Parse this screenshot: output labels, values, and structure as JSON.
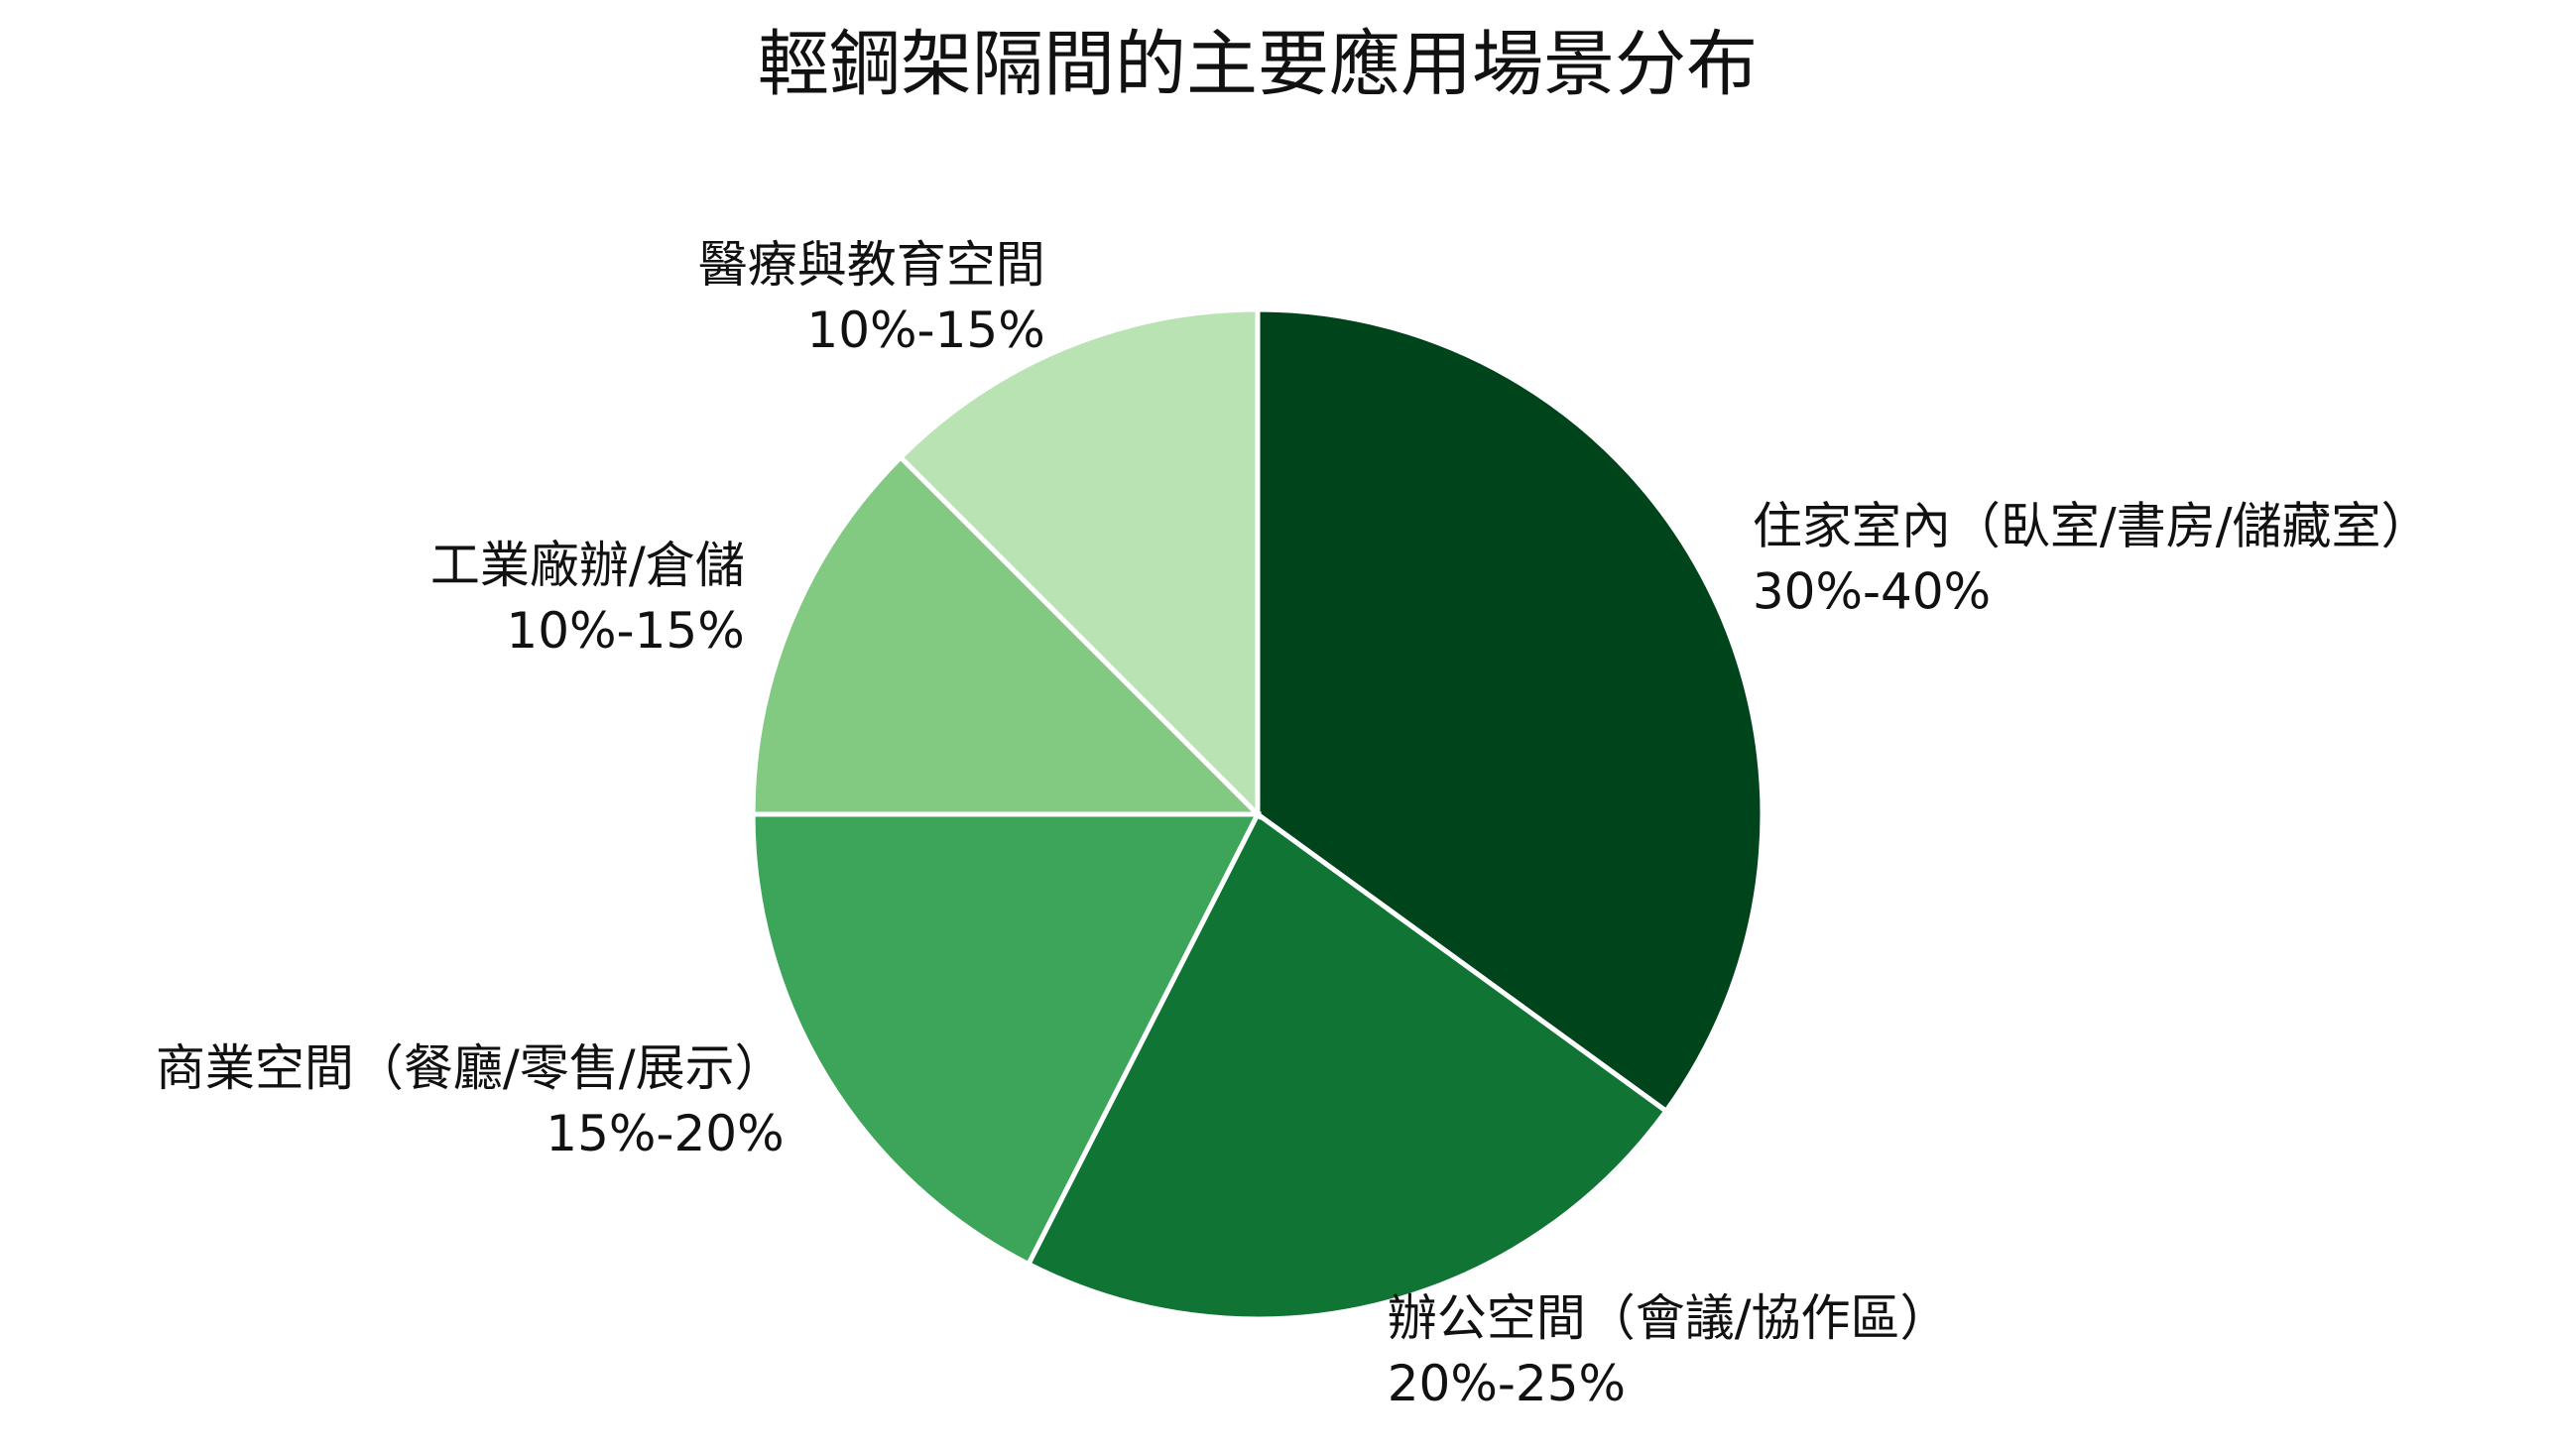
{
  "chart_data": {
    "type": "pie",
    "title": "輕鋼架隔間的主要應用場景分布",
    "categories": [
      "住家室內（臥室/書房/儲藏室）",
      "辦公空間（會議/協作區）",
      "商業空間（餐廳/零售/展示）",
      "工業廠辦/倉儲",
      "醫療與教育空間"
    ],
    "values": [
      35,
      22.5,
      17.5,
      12.5,
      12.5
    ],
    "value_labels": [
      "30%-40%",
      "20%-25%",
      "15%-20%",
      "10%-15%",
      "10%-15%"
    ],
    "colors": [
      "#00441b",
      "#0f7434",
      "#3ca55a",
      "#82c982",
      "#b9e3b3"
    ]
  }
}
